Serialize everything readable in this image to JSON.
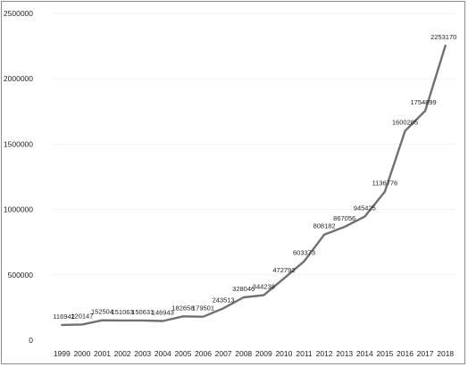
{
  "chart_data": {
    "type": "line",
    "title": "",
    "xlabel": "",
    "ylabel": "",
    "x": [
      "1999",
      "2000",
      "2001",
      "2002",
      "2003",
      "2004",
      "2005",
      "2006",
      "2007",
      "2008",
      "2009",
      "2010",
      "2011",
      "2012",
      "2013",
      "2014",
      "2015",
      "2016",
      "2017",
      "2018"
    ],
    "series": [
      {
        "name": "",
        "values": [
          116942,
          120147,
          152504,
          151063,
          150631,
          146943,
          182658,
          179501,
          243513,
          328046,
          344238,
          472792,
          603373,
          808182,
          867056,
          945425,
          1136776,
          1600285,
          1754899,
          2253170
        ],
        "labels": [
          "116942",
          "120147",
          "152504",
          "151063",
          "150631",
          "146943",
          "182658",
          "179501",
          "243513",
          "328046",
          "344238",
          "472792",
          "603373",
          "808182",
          "867056",
          "945425",
          "1136776",
          "1600285",
          "1754899",
          "2253170"
        ]
      }
    ],
    "yticks": [
      0,
      500000,
      1000000,
      1500000,
      2000000,
      2500000
    ],
    "ytick_labels": [
      "0",
      "500000",
      "1000000",
      "1500000",
      "2000000",
      "2500000"
    ],
    "ylim": [
      0,
      2500000
    ],
    "grid": true,
    "legend": "none",
    "colors": {
      "line": "#707070",
      "grid": "#f2f2f2",
      "text": "#222222"
    }
  }
}
